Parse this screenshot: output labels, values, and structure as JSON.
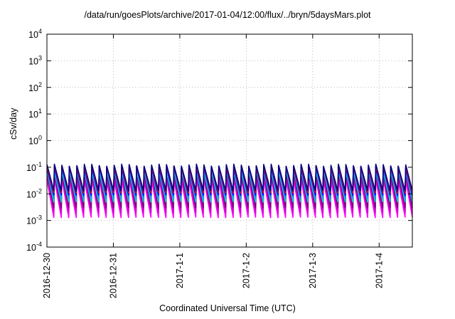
{
  "chart_data": {
    "type": "line",
    "title": "/data/run/goesPlots/archive/2017-01-04/12:00/flux/../bryn/5daysMars.plot",
    "xlabel": "Coordinated Universal Time (UTC)",
    "ylabel": "cSv/day",
    "yscale": "log",
    "ylim": [
      0.0001,
      10000
    ],
    "xlim": [
      "2016-12-30 00:00",
      "2017-01-04 12:00"
    ],
    "xticks": [
      "2016-12-30",
      "2016-12-31",
      "2017-1-1",
      "2017-1-2",
      "2017-1-3",
      "2017-1-4"
    ],
    "yticks": [
      {
        "base": "10",
        "exp": "-4"
      },
      {
        "base": "10",
        "exp": "-3"
      },
      {
        "base": "10",
        "exp": "-2"
      },
      {
        "base": "10",
        "exp": "-1"
      },
      {
        "base": "10",
        "exp": "0"
      },
      {
        "base": "10",
        "exp": "1"
      },
      {
        "base": "10",
        "exp": "2"
      },
      {
        "base": "10",
        "exp": "3"
      },
      {
        "base": "10",
        "exp": "4"
      }
    ],
    "grid": true,
    "period_hours": 2.7,
    "series": [
      {
        "color": "#ff00ff",
        "peak": 0.035,
        "trough": 0.0013
      },
      {
        "color": "#cc00cc",
        "peak": 0.045,
        "trough": 0.002
      },
      {
        "color": "#800080",
        "peak": 0.06,
        "trough": 0.003
      },
      {
        "color": "#00cccc",
        "peak": 0.075,
        "trough": 0.005
      },
      {
        "color": "#1e90ff",
        "peak": 0.09,
        "trough": 0.007
      },
      {
        "color": "#0000ff",
        "peak": 0.1,
        "trough": 0.009
      },
      {
        "color": "#ff0000",
        "peak": 0.11,
        "trough": 0.011
      },
      {
        "color": "#000080",
        "peak": 0.12,
        "trough": 0.013
      }
    ]
  }
}
